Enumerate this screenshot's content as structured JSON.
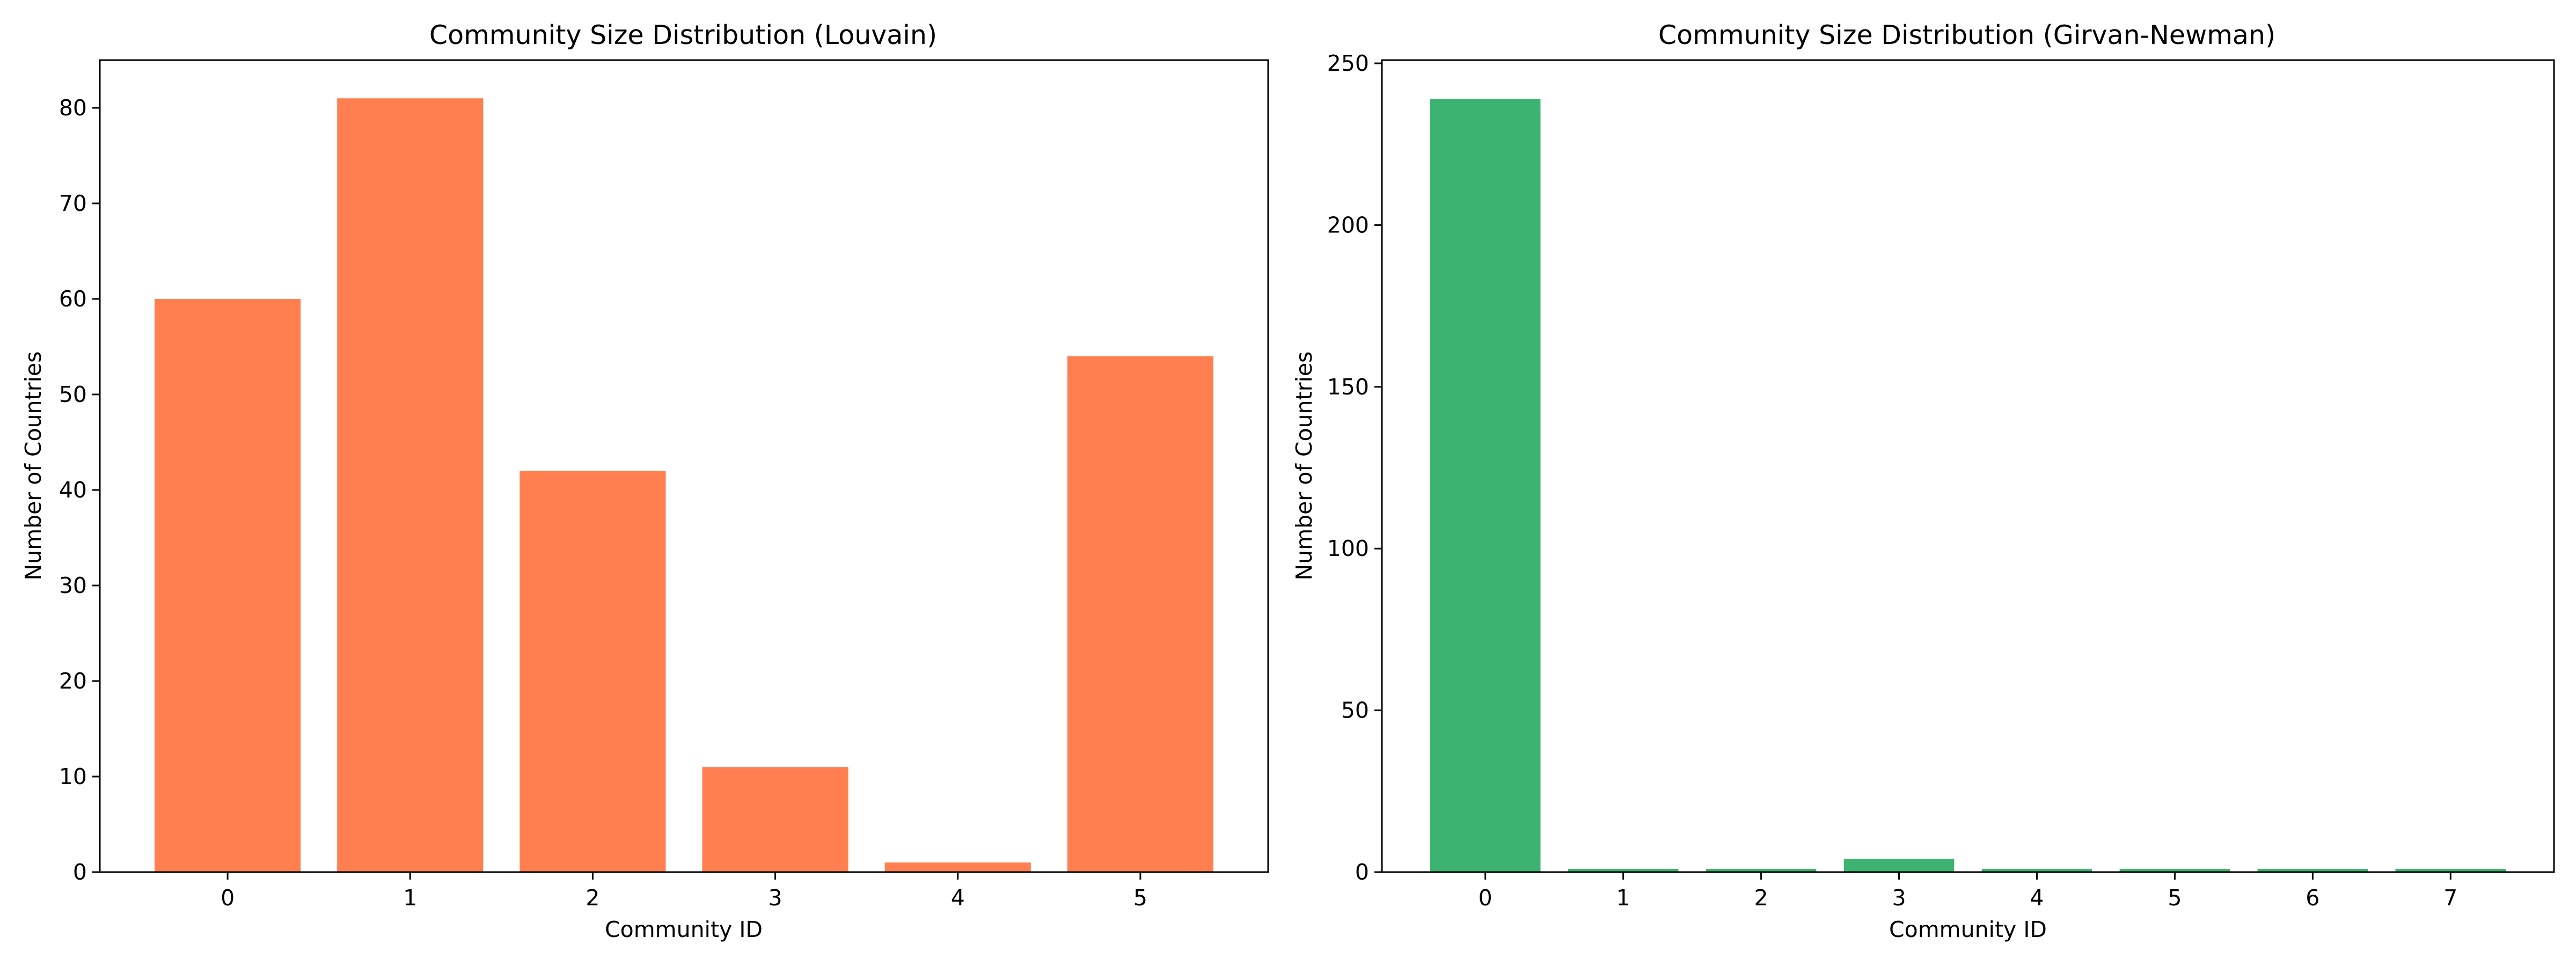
{
  "chart_data": [
    {
      "type": "bar",
      "title": "Community Size Distribution (Louvain)",
      "xlabel": "Community ID",
      "ylabel": "Number of Countries",
      "categories": [
        "0",
        "1",
        "2",
        "3",
        "4",
        "5"
      ],
      "values": [
        60,
        81,
        42,
        11,
        1,
        54
      ],
      "yticks": [
        0,
        10,
        20,
        30,
        40,
        50,
        60,
        70,
        80
      ],
      "ylim": [
        0,
        85
      ],
      "xlim": [
        -0.7,
        5.7
      ],
      "bar_width": 0.8,
      "bar_color": "#ff7f50",
      "grid": false
    },
    {
      "type": "bar",
      "title": "Community Size Distribution (Girvan-Newman)",
      "xlabel": "Community ID",
      "ylabel": "Number of Countries",
      "categories": [
        "0",
        "1",
        "2",
        "3",
        "4",
        "5",
        "6",
        "7"
      ],
      "values": [
        239,
        1,
        1,
        4,
        1,
        1,
        1,
        1
      ],
      "yticks": [
        0,
        50,
        100,
        150,
        200,
        250
      ],
      "ylim": [
        0,
        251
      ],
      "xlim": [
        -0.75,
        7.75
      ],
      "bar_width": 0.8,
      "bar_color": "#3cb371",
      "grid": false
    }
  ]
}
